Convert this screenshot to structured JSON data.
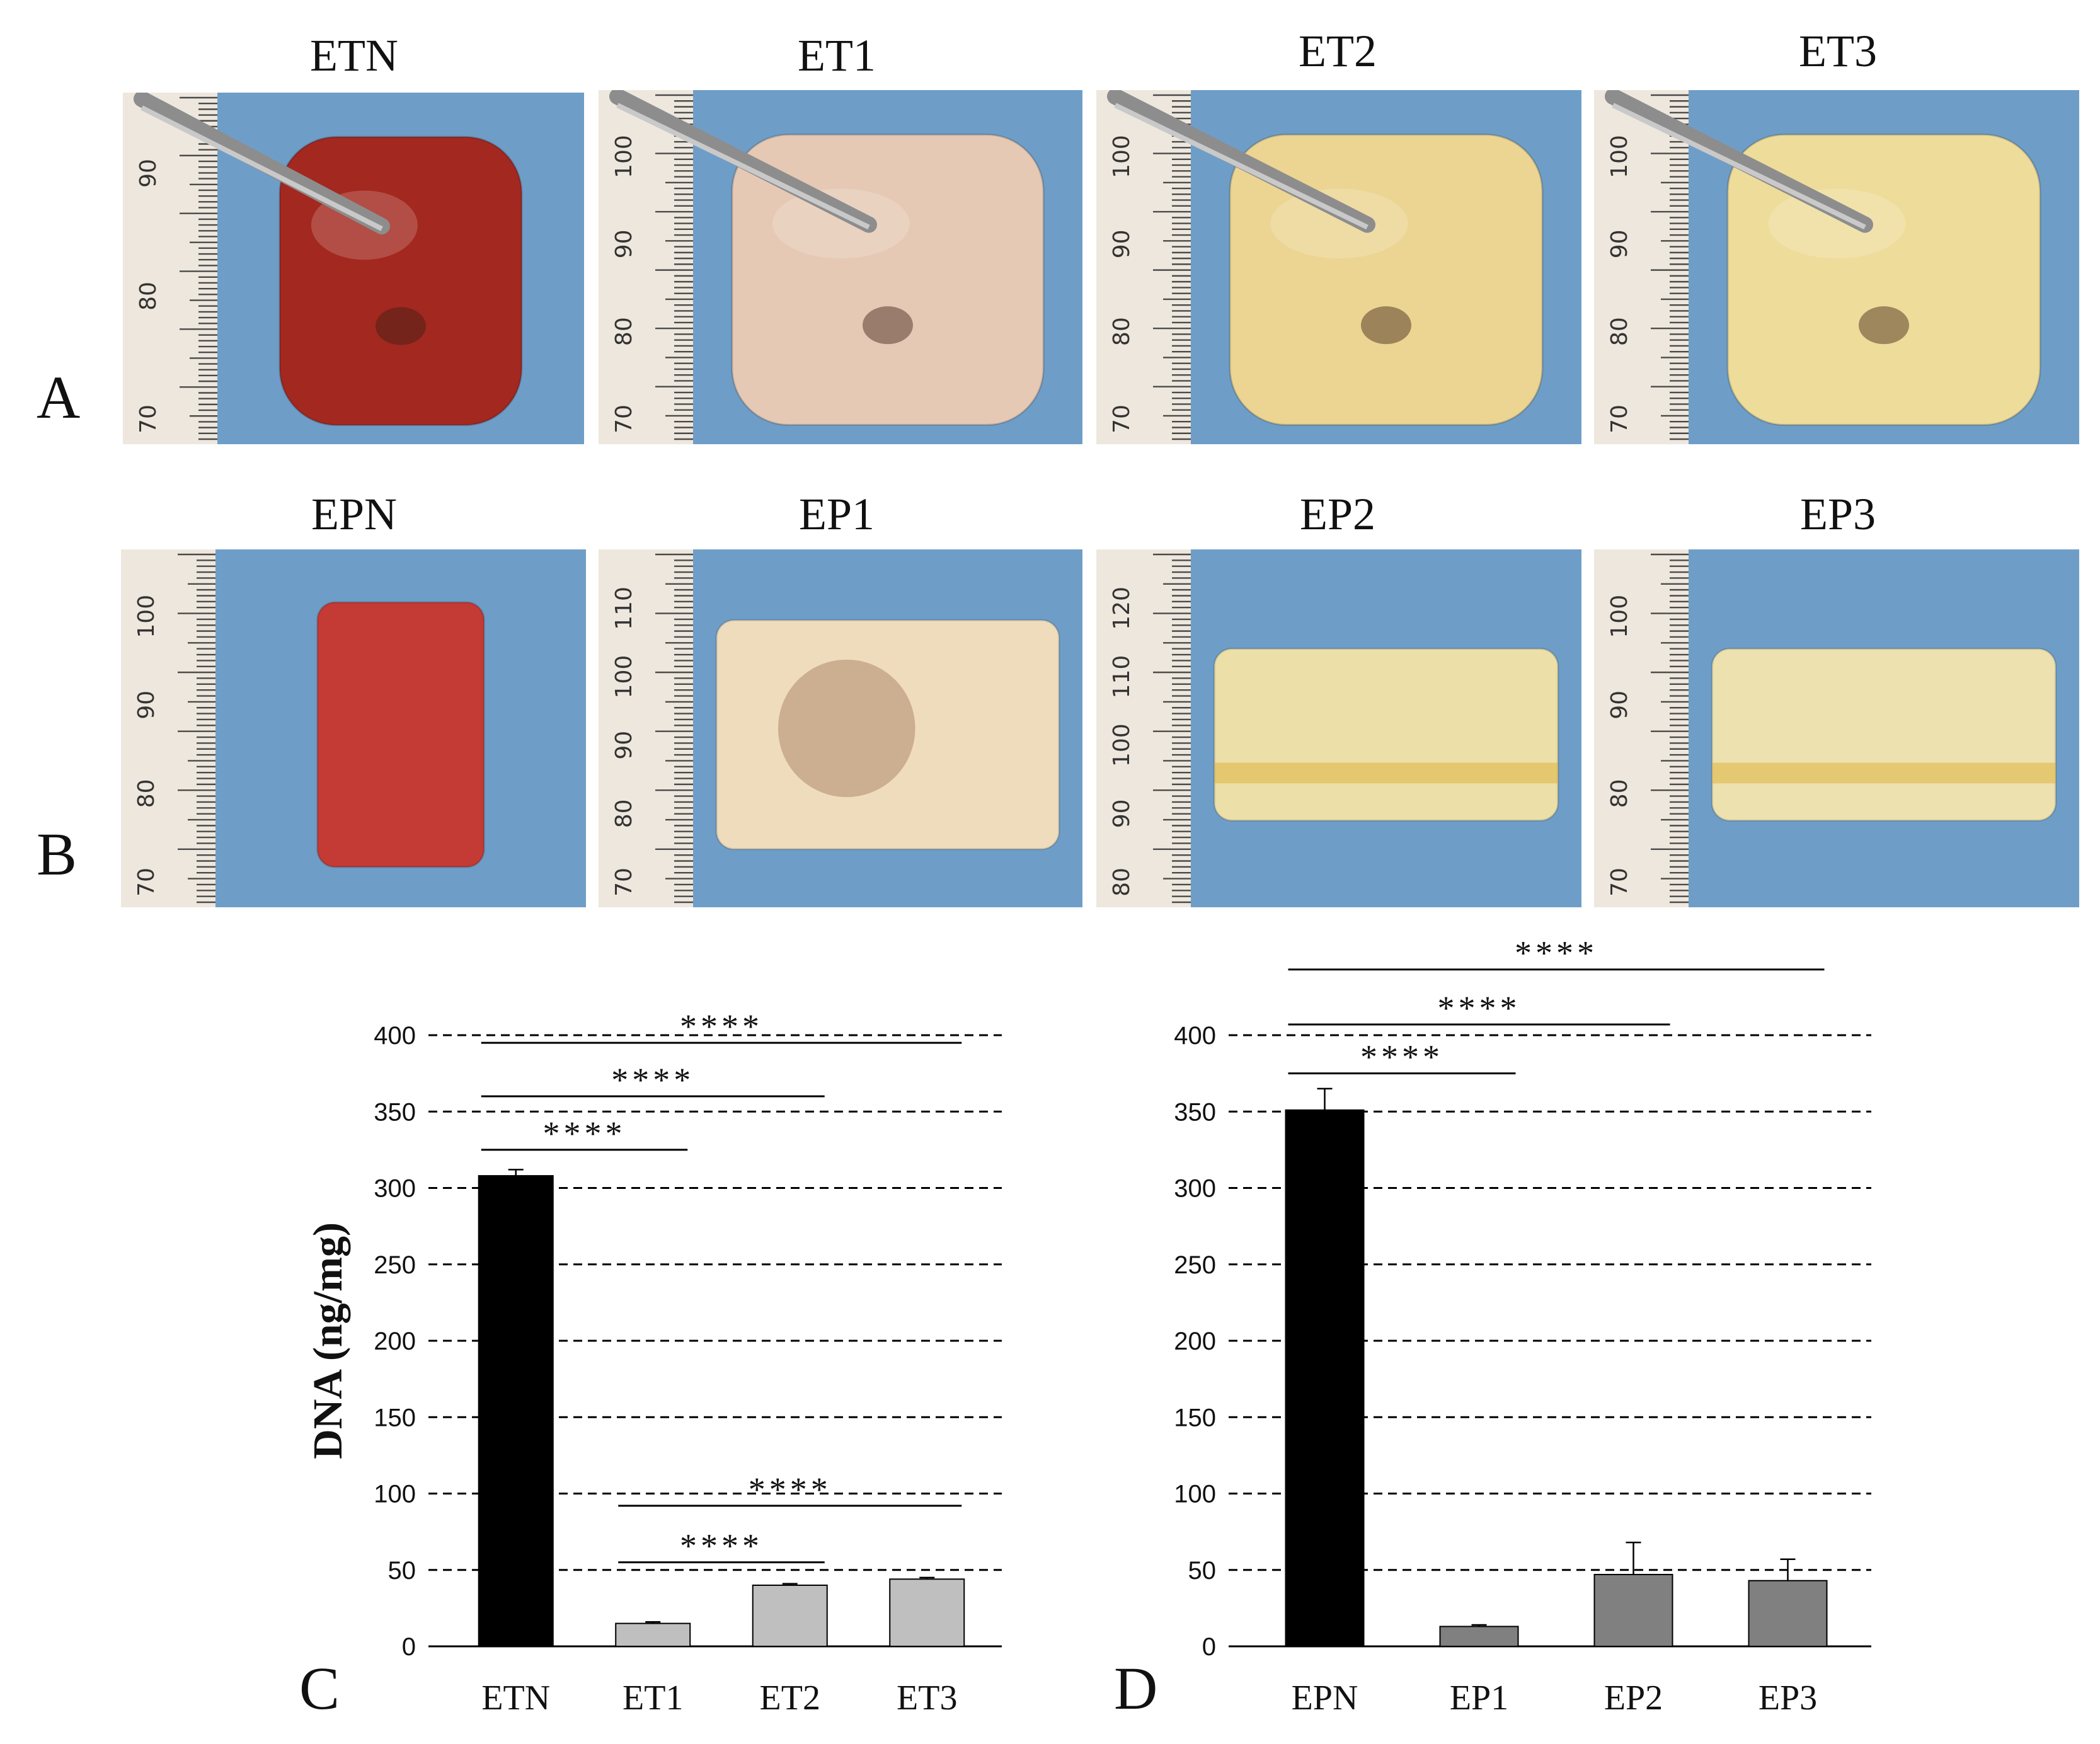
{
  "panels": {
    "A": "A",
    "B": "B",
    "C": "C",
    "D": "D"
  },
  "row_a": {
    "titles": [
      "ETN",
      "ET1",
      "ET2",
      "ET3"
    ],
    "tissue_colors": [
      "#a3281f",
      "#e6c9b4",
      "#ecd592",
      "#eedc9a"
    ]
  },
  "row_b": {
    "titles": [
      "EPN",
      "EP1",
      "EP2",
      "EP3"
    ],
    "tissue_colors": [
      "#c43a34",
      "#eedcbd",
      "#ecdfa8",
      "#ede1b0"
    ]
  },
  "ruler_a": [
    [
      "70",
      "80",
      "90"
    ],
    [
      "70",
      "80",
      "90",
      "100"
    ],
    [
      "70",
      "80",
      "90",
      "100"
    ],
    [
      "70",
      "80",
      "90",
      "100"
    ]
  ],
  "ruler_b": [
    [
      "70",
      "80",
      "90",
      "100"
    ],
    [
      "70",
      "80",
      "90",
      "100",
      "110"
    ],
    [
      "80",
      "90",
      "100",
      "110",
      "120"
    ],
    [
      "70",
      "80",
      "90",
      "100"
    ]
  ],
  "chart_data": [
    {
      "type": "bar",
      "panel": "C",
      "categories": [
        "ETN",
        "ET1",
        "ET2",
        "ET3"
      ],
      "values": [
        308,
        15,
        40,
        44
      ],
      "errors": [
        4,
        1,
        1,
        1
      ],
      "bar_colors": [
        "#000000",
        "#bfbfbf",
        "#bfbfbf",
        "#bfbfbf"
      ],
      "ylabel": "DNA (ng/mg)",
      "ylim": [
        0,
        400
      ],
      "yticks": [
        0,
        50,
        100,
        150,
        200,
        250,
        300,
        350,
        400
      ],
      "ytick_labels": [
        "0",
        "50",
        "100",
        "150",
        "200",
        "250",
        "300",
        "350",
        "400"
      ],
      "grid": "dashed",
      "significance": [
        {
          "from": 0,
          "to": 1,
          "y": 325,
          "label": "****"
        },
        {
          "from": 0,
          "to": 2,
          "y": 360,
          "label": "****"
        },
        {
          "from": 0,
          "to": 3,
          "y": 395,
          "label": "****"
        },
        {
          "from": 1,
          "to": 2,
          "y": 55,
          "label": "****"
        },
        {
          "from": 1,
          "to": 3,
          "y": 92,
          "label": "****"
        }
      ]
    },
    {
      "type": "bar",
      "panel": "D",
      "categories": [
        "EPN",
        "EP1",
        "EP2",
        "EP3"
      ],
      "values": [
        351,
        13,
        47,
        43
      ],
      "errors": [
        14,
        1,
        21,
        14
      ],
      "bar_colors": [
        "#000000",
        "#808080",
        "#808080",
        "#808080"
      ],
      "ylabel": "",
      "ylim": [
        0,
        400
      ],
      "yticks": [
        0,
        50,
        100,
        150,
        200,
        250,
        300,
        350,
        400
      ],
      "ytick_labels": [
        "0",
        "50",
        "100",
        "150",
        "200",
        "250",
        "300",
        "350",
        "400"
      ],
      "grid": "dashed",
      "significance": [
        {
          "from": 0,
          "to": 1,
          "y": 375,
          "label": "****"
        },
        {
          "from": 0,
          "to": 2,
          "y": 407,
          "label": "****"
        },
        {
          "from": 0,
          "to": 3,
          "y": 443,
          "label": "****"
        }
      ]
    }
  ]
}
